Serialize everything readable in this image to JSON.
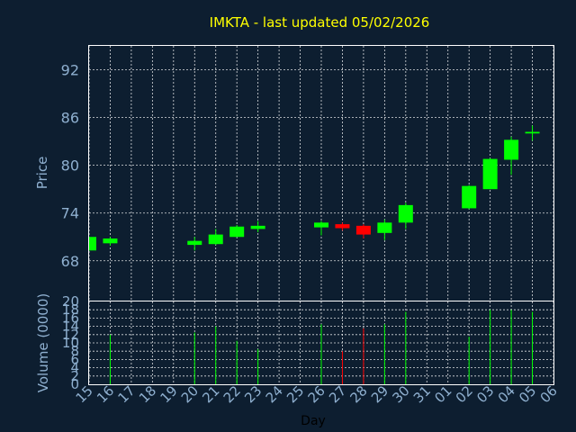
{
  "chart_data": {
    "type": "candlestick",
    "title": "IMKTA - last updated 05/02/2026",
    "xlabel": "Day",
    "ylabel_price": "Price",
    "ylabel_volume": "Volume (0000)",
    "price_ticks": [
      68,
      74,
      80,
      86,
      92
    ],
    "price_ylim": [
      63,
      95
    ],
    "volume_ticks": [
      0,
      2,
      4,
      6,
      8,
      10,
      12,
      14,
      16,
      18,
      20
    ],
    "volume_ylim": [
      0,
      20
    ],
    "x_ticks": [
      "15",
      "16",
      "17",
      "18",
      "19",
      "20",
      "21",
      "22",
      "23",
      "24",
      "25",
      "26",
      "27",
      "28",
      "29",
      "30",
      "31",
      "01",
      "02",
      "03",
      "04",
      "05",
      "06"
    ],
    "candles": [
      {
        "day": "15",
        "open": 69.3,
        "close": 71.0,
        "high": 71.0,
        "low": 69.3,
        "volume": 0
      },
      {
        "day": "16",
        "open": 70.2,
        "close": 70.8,
        "high": 71.0,
        "low": 69.9,
        "volume": 12
      },
      {
        "day": "20",
        "open": 70.0,
        "close": 70.5,
        "high": 71.0,
        "low": 69.3,
        "volume": 12.5
      },
      {
        "day": "21",
        "open": 70.1,
        "close": 71.3,
        "high": 72.0,
        "low": 70.0,
        "volume": 14
      },
      {
        "day": "22",
        "open": 71.0,
        "close": 72.3,
        "high": 72.5,
        "low": 71.0,
        "volume": 10.5
      },
      {
        "day": "23",
        "open": 72.0,
        "close": 72.4,
        "high": 73.0,
        "low": 71.6,
        "volume": 8.5
      },
      {
        "day": "26",
        "open": 72.2,
        "close": 72.8,
        "high": 73.0,
        "low": 71.2,
        "volume": 14.5
      },
      {
        "day": "27",
        "open": 72.6,
        "close": 72.1,
        "high": 72.8,
        "low": 71.8,
        "volume": 8
      },
      {
        "day": "28",
        "open": 72.4,
        "close": 71.3,
        "high": 72.6,
        "low": 70.8,
        "volume": 13.5
      },
      {
        "day": "29",
        "open": 71.5,
        "close": 72.8,
        "high": 73.2,
        "low": 70.6,
        "volume": 14.5
      },
      {
        "day": "30",
        "open": 72.8,
        "close": 75.0,
        "high": 75.3,
        "low": 72.0,
        "volume": 17.5
      },
      {
        "day": "02",
        "open": 74.6,
        "close": 77.4,
        "high": 77.5,
        "low": 74.5,
        "volume": 11.5
      },
      {
        "day": "03",
        "open": 77.0,
        "close": 80.8,
        "high": 80.9,
        "low": 77.0,
        "volume": 18
      },
      {
        "day": "04",
        "open": 80.7,
        "close": 83.2,
        "high": 83.6,
        "low": 78.8,
        "volume": 18
      },
      {
        "day": "05",
        "open": 84.0,
        "close": 84.2,
        "high": 85.0,
        "low": 83.1,
        "volume": 17.5
      }
    ],
    "colors": {
      "background": "#0d1e30",
      "up": "#00ff00",
      "down": "#ff0000",
      "title": "#ffff00",
      "axis_text": "#8fb0d0",
      "grid": "#ffffff"
    },
    "grid": true
  }
}
